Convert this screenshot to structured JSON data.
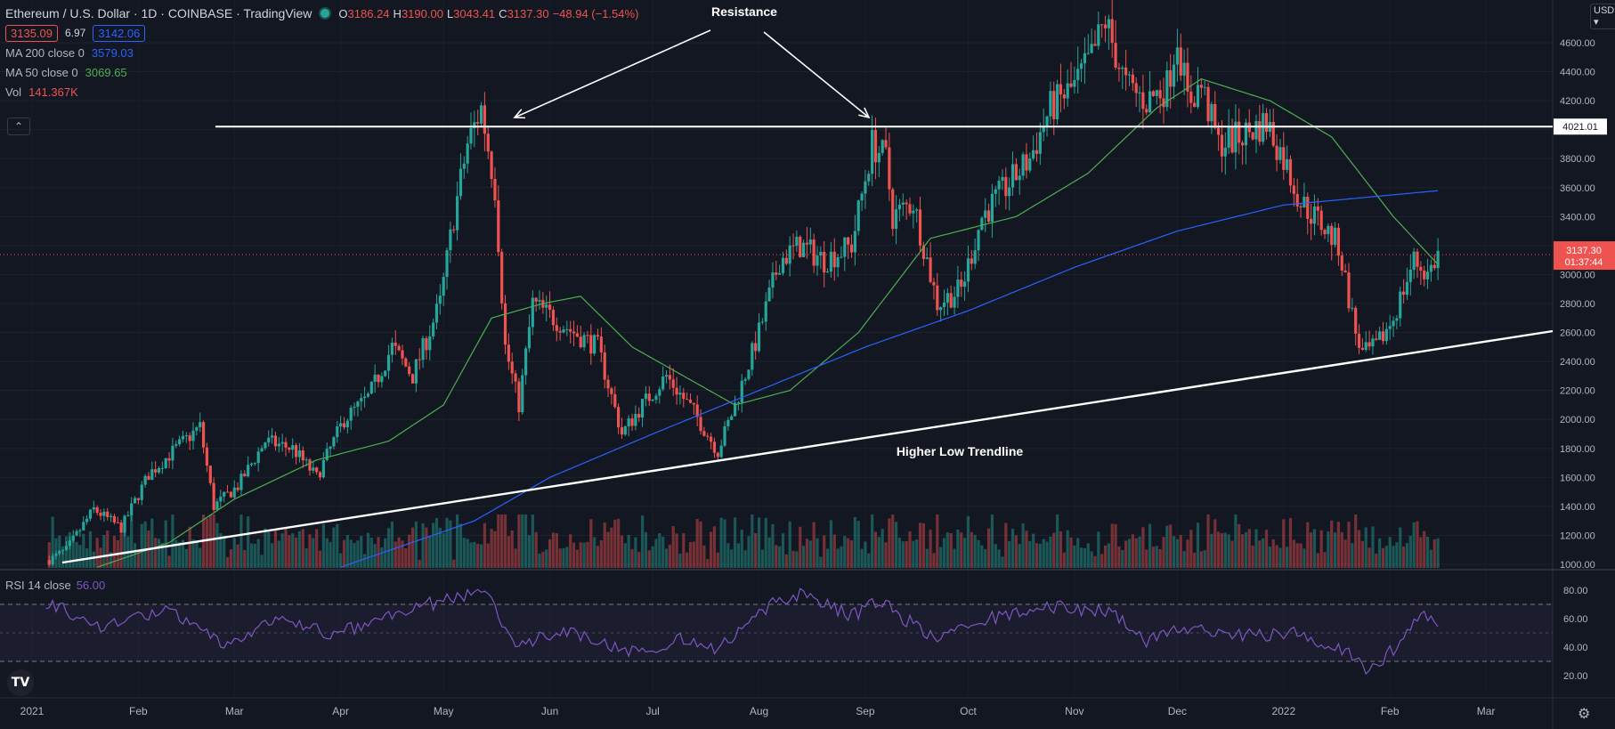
{
  "header": {
    "symbol": "Ethereum / U.S. Dollar · 1D · COINBASE · TradingView",
    "ohlc": [
      {
        "label": "O",
        "value": "3186.24"
      },
      {
        "label": "H",
        "value": "3190.00"
      },
      {
        "label": "L",
        "value": "3043.41"
      },
      {
        "label": "C",
        "value": "3137.30"
      },
      {
        "label": "",
        "value": "−48.94 (−1.54%)"
      }
    ],
    "bid": "3135.09",
    "spread": "6.97",
    "ask": "3142.06",
    "collapse_glyph": "⌃"
  },
  "indicators": [
    {
      "name": "MA 200 close 0",
      "value": "3579.03",
      "color": "#2962ff"
    },
    {
      "name": "MA 50 close 0",
      "value": "3069.65",
      "color": "#4caf50"
    },
    {
      "name": "Vol",
      "value": "141.367K",
      "color": "#ef5350"
    }
  ],
  "rsi": {
    "name": "RSI 14 close",
    "value": "56.00",
    "color": "#7e57c2"
  },
  "currency": "USD ▾",
  "logo": "TV",
  "annotations": {
    "resistance": "Resistance",
    "trendline": "Higher Low Trendline"
  },
  "colors": {
    "up": "#26a69a",
    "down": "#ef5350",
    "ma200": "#2962ff",
    "ma50": "#4caf50",
    "rsi": "#7e57c2",
    "bg": "#131722"
  },
  "chart_data": {
    "type": "candlestick",
    "title": "Ethereum / U.S. Dollar · 1D · COINBASE · TradingView",
    "y_scale": "log",
    "price_ticks": [
      1000,
      1200,
      1400,
      1600,
      1800,
      2000,
      2200,
      2400,
      2600,
      2800,
      3000,
      3200,
      3400,
      3600,
      3800,
      4000,
      4200,
      4400,
      4600
    ],
    "x_labels": [
      "2021",
      "Feb",
      "Mar",
      "Apr",
      "May",
      "Jun",
      "Jul",
      "Aug",
      "Sep",
      "Oct",
      "Nov",
      "Dec",
      "2022",
      "Feb",
      "Mar"
    ],
    "current_price": "3137.30",
    "countdown": "01:37:44",
    "resistance_level": "4021.01",
    "rsi_ticks": [
      20,
      40,
      60,
      80
    ],
    "rsi_bands": [
      30,
      70
    ],
    "trendline": {
      "label": "Higher Low Trendline"
    },
    "price_path": [
      [
        "2021-01-06",
        1030
      ],
      [
        "2021-01-11",
        1100
      ],
      [
        "2021-01-19",
        1380
      ],
      [
        "2021-01-27",
        1250
      ],
      [
        "2021-02-04",
        1620
      ],
      [
        "2021-02-12",
        1800
      ],
      [
        "2021-02-19",
        1950
      ],
      [
        "2021-02-23",
        1400
      ],
      [
        "2021-03-02",
        1540
      ],
      [
        "2021-03-10",
        1850
      ],
      [
        "2021-03-18",
        1800
      ],
      [
        "2021-03-25",
        1600
      ],
      [
        "2021-04-02",
        2000
      ],
      [
        "2021-04-09",
        2150
      ],
      [
        "2021-04-16",
        2500
      ],
      [
        "2021-04-22",
        2300
      ],
      [
        "2021-04-30",
        2800
      ],
      [
        "2021-05-04",
        3400
      ],
      [
        "2021-05-08",
        3900
      ],
      [
        "2021-05-12",
        4150
      ],
      [
        "2021-05-16",
        3600
      ],
      [
        "2021-05-19",
        2500
      ],
      [
        "2021-05-23",
        2100
      ],
      [
        "2021-05-27",
        2800
      ],
      [
        "2021-06-02",
        2700
      ],
      [
        "2021-06-08",
        2600
      ],
      [
        "2021-06-15",
        2500
      ],
      [
        "2021-06-22",
        1900
      ],
      [
        "2021-06-28",
        2100
      ],
      [
        "2021-07-05",
        2300
      ],
      [
        "2021-07-13",
        2050
      ],
      [
        "2021-07-20",
        1780
      ],
      [
        "2021-07-25",
        2100
      ],
      [
        "2021-08-01",
        2600
      ],
      [
        "2021-08-07",
        3100
      ],
      [
        "2021-08-13",
        3200
      ],
      [
        "2021-08-20",
        3100
      ],
      [
        "2021-08-28",
        3200
      ],
      [
        "2021-09-03",
        3900
      ],
      [
        "2021-09-07",
        3800
      ],
      [
        "2021-09-09",
        3400
      ],
      [
        "2021-09-15",
        3500
      ],
      [
        "2021-09-22",
        2800
      ],
      [
        "2021-09-29",
        2900
      ],
      [
        "2021-10-05",
        3400
      ],
      [
        "2021-10-12",
        3600
      ],
      [
        "2021-10-19",
        3800
      ],
      [
        "2021-10-25",
        4150
      ],
      [
        "2021-11-01",
        4300
      ],
      [
        "2021-11-06",
        4500
      ],
      [
        "2021-11-10",
        4750
      ],
      [
        "2021-11-16",
        4300
      ],
      [
        "2021-11-22",
        4200
      ],
      [
        "2021-11-28",
        4300
      ],
      [
        "2021-12-01",
        4650
      ],
      [
        "2021-12-04",
        4200
      ],
      [
        "2021-12-08",
        4300
      ],
      [
        "2021-12-13",
        3900
      ],
      [
        "2021-12-19",
        3950
      ],
      [
        "2021-12-27",
        4050
      ],
      [
        "2022-01-01",
        3800
      ],
      [
        "2022-01-06",
        3500
      ],
      [
        "2022-01-12",
        3350
      ],
      [
        "2022-01-17",
        3200
      ],
      [
        "2022-01-22",
        2600
      ],
      [
        "2022-01-24",
        2450
      ],
      [
        "2022-01-28",
        2500
      ],
      [
        "2022-02-02",
        2700
      ],
      [
        "2022-02-08",
        3100
      ],
      [
        "2022-02-12",
        3000
      ],
      [
        "2022-02-15",
        3137
      ]
    ],
    "ma50_path": [
      [
        "2021-01-20",
        980
      ],
      [
        "2021-02-10",
        1150
      ],
      [
        "2021-03-01",
        1450
      ],
      [
        "2021-03-25",
        1720
      ],
      [
        "2021-04-15",
        1850
      ],
      [
        "2021-05-01",
        2100
      ],
      [
        "2021-05-15",
        2700
      ],
      [
        "2021-05-30",
        2800
      ],
      [
        "2021-06-10",
        2850
      ],
      [
        "2021-06-25",
        2500
      ],
      [
        "2021-07-10",
        2300
      ],
      [
        "2021-07-25",
        2100
      ],
      [
        "2021-08-10",
        2200
      ],
      [
        "2021-08-30",
        2600
      ],
      [
        "2021-09-20",
        3250
      ],
      [
        "2021-10-15",
        3400
      ],
      [
        "2021-11-05",
        3700
      ],
      [
        "2021-11-25",
        4150
      ],
      [
        "2021-12-08",
        4350
      ],
      [
        "2021-12-28",
        4200
      ],
      [
        "2022-01-15",
        3950
      ],
      [
        "2022-02-02",
        3400
      ],
      [
        "2022-02-15",
        3070
      ]
    ],
    "ma200_path": [
      [
        "2021-04-01",
        980
      ],
      [
        "2021-05-10",
        1300
      ],
      [
        "2021-06-01",
        1600
      ],
      [
        "2021-07-01",
        1900
      ],
      [
        "2021-08-01",
        2200
      ],
      [
        "2021-09-01",
        2500
      ],
      [
        "2021-10-01",
        2750
      ],
      [
        "2021-11-01",
        3050
      ],
      [
        "2021-12-01",
        3300
      ],
      [
        "2022-01-01",
        3480
      ],
      [
        "2022-02-15",
        3579
      ]
    ],
    "rsi_path": [
      [
        "2021-01-05",
        72
      ],
      [
        "2021-01-20",
        55
      ],
      [
        "2021-02-10",
        65
      ],
      [
        "2021-02-25",
        42
      ],
      [
        "2021-03-15",
        60
      ],
      [
        "2021-03-30",
        48
      ],
      [
        "2021-04-20",
        66
      ],
      [
        "2021-05-05",
        75
      ],
      [
        "2021-05-12",
        82
      ],
      [
        "2021-05-22",
        42
      ],
      [
        "2021-06-05",
        52
      ],
      [
        "2021-06-25",
        36
      ],
      [
        "2021-07-10",
        46
      ],
      [
        "2021-07-20",
        38
      ],
      [
        "2021-08-05",
        70
      ],
      [
        "2021-08-15",
        78
      ],
      [
        "2021-08-28",
        62
      ],
      [
        "2021-09-05",
        72
      ],
      [
        "2021-09-22",
        45
      ],
      [
        "2021-10-10",
        62
      ],
      [
        "2021-10-25",
        68
      ],
      [
        "2021-11-10",
        66
      ],
      [
        "2021-11-22",
        45
      ],
      [
        "2021-12-05",
        55
      ],
      [
        "2021-12-20",
        48
      ],
      [
        "2022-01-05",
        50
      ],
      [
        "2022-01-20",
        35
      ],
      [
        "2022-01-26",
        24
      ],
      [
        "2022-02-05",
        45
      ],
      [
        "2022-02-10",
        62
      ],
      [
        "2022-02-15",
        56
      ]
    ]
  }
}
